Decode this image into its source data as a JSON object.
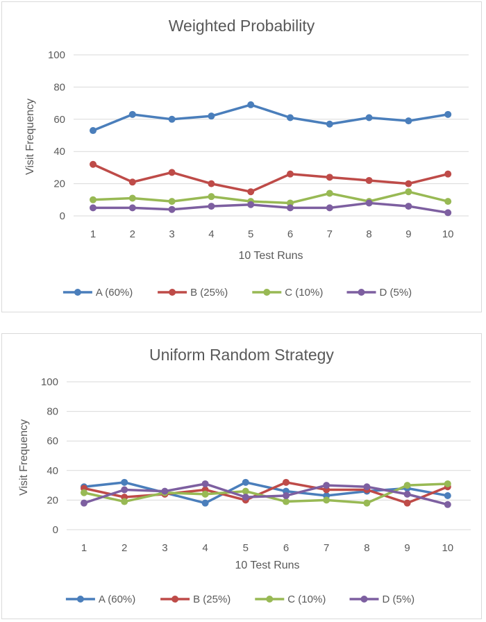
{
  "chart_data": [
    {
      "type": "line",
      "title": "Weighted Probability",
      "xlabel": "10 Test Runs",
      "ylabel": "Visit Frequency",
      "ylim": [
        0,
        100
      ],
      "yticks": [
        0,
        20,
        40,
        60,
        80,
        100
      ],
      "categories": [
        "1",
        "2",
        "3",
        "4",
        "5",
        "6",
        "7",
        "8",
        "9",
        "10"
      ],
      "grid": "horizontal",
      "legend": "bottom",
      "series": [
        {
          "name": "A (60%)",
          "color": "#4a7ebb",
          "values": [
            53,
            63,
            60,
            62,
            69,
            61,
            57,
            61,
            59,
            63
          ]
        },
        {
          "name": "B (25%)",
          "color": "#be4b48",
          "values": [
            32,
            21,
            27,
            20,
            15,
            26,
            24,
            22,
            20,
            26
          ]
        },
        {
          "name": "C (10%)",
          "color": "#98b954",
          "values": [
            10,
            11,
            9,
            12,
            9,
            8,
            14,
            9,
            15,
            9
          ]
        },
        {
          "name": "D (5%)",
          "color": "#7d5fa0",
          "values": [
            5,
            5,
            4,
            6,
            7,
            5,
            5,
            8,
            6,
            2
          ]
        }
      ]
    },
    {
      "type": "line",
      "title": "Uniform Random Strategy",
      "xlabel": "10 Test Runs",
      "ylabel": "Visit Frequency",
      "ylim": [
        0,
        100
      ],
      "yticks": [
        0,
        20,
        40,
        60,
        80,
        100
      ],
      "categories": [
        "1",
        "2",
        "3",
        "4",
        "5",
        "6",
        "7",
        "8",
        "9",
        "10"
      ],
      "grid": "horizontal",
      "legend": "bottom",
      "series": [
        {
          "name": "A (60%)",
          "color": "#4a7ebb",
          "values": [
            29,
            32,
            25,
            18,
            32,
            26,
            23,
            26,
            28,
            23
          ]
        },
        {
          "name": "B (25%)",
          "color": "#be4b48",
          "values": [
            28,
            22,
            24,
            27,
            20,
            32,
            27,
            27,
            18,
            29
          ]
        },
        {
          "name": "C (10%)",
          "color": "#98b954",
          "values": [
            25,
            19,
            25,
            24,
            26,
            19,
            20,
            18,
            30,
            31
          ]
        },
        {
          "name": "D (5%)",
          "color": "#7d5fa0",
          "values": [
            18,
            27,
            26,
            31,
            22,
            23,
            30,
            29,
            24,
            17
          ]
        }
      ]
    }
  ]
}
